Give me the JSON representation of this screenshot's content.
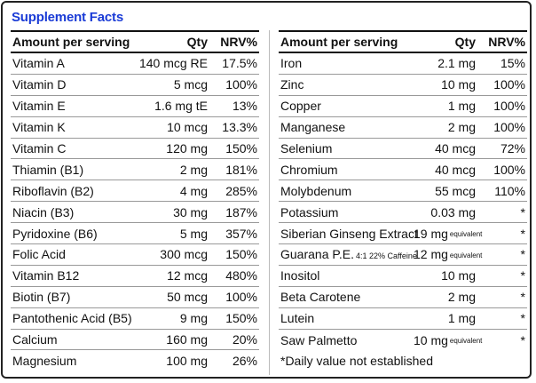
{
  "title": "Supplement Facts",
  "headers": {
    "name": "Amount per serving",
    "qty": "Qty",
    "nrv": "NRV%"
  },
  "left_rows": [
    {
      "name": "Vitamin A",
      "qty": "140 mcg RE",
      "nrv": "17.5%"
    },
    {
      "name": "Vitamin D",
      "qty": "5 mcg",
      "nrv": "100%"
    },
    {
      "name": "Vitamin E",
      "qty": "1.6 mg tE",
      "nrv": "13%"
    },
    {
      "name": "Vitamin K",
      "qty": "10 mcg",
      "nrv": "13.3%"
    },
    {
      "name": "Vitamin C",
      "qty": "120 mg",
      "nrv": "150%"
    },
    {
      "name": "Thiamin (B1)",
      "qty": "2 mg",
      "nrv": "181%"
    },
    {
      "name": "Riboflavin (B2)",
      "qty": "4 mg",
      "nrv": "285%"
    },
    {
      "name": "Niacin (B3)",
      "qty": "30 mg",
      "nrv": "187%"
    },
    {
      "name": "Pyridoxine (B6)",
      "qty": "5 mg",
      "nrv": "357%"
    },
    {
      "name": "Folic Acid",
      "qty": "300 mcg",
      "nrv": "150%"
    },
    {
      "name": "Vitamin B12",
      "qty": "12 mcg",
      "nrv": "480%"
    },
    {
      "name": "Biotin (B7)",
      "qty": "50 mcg",
      "nrv": "100%"
    },
    {
      "name": "Pantothenic Acid (B5)",
      "qty": "9 mg",
      "nrv": "150%"
    },
    {
      "name": "Calcium",
      "qty": "160 mg",
      "nrv": "20%"
    },
    {
      "name": "Magnesium",
      "qty": "100 mg",
      "nrv": "26%"
    }
  ],
  "right_rows": [
    {
      "name": "Iron",
      "qty": "2.1 mg",
      "nrv": "15%"
    },
    {
      "name": "Zinc",
      "qty": "10 mg",
      "nrv": "100%"
    },
    {
      "name": "Copper",
      "qty": "1 mg",
      "nrv": "100%"
    },
    {
      "name": "Manganese",
      "qty": "2 mg",
      "nrv": "100%"
    },
    {
      "name": "Selenium",
      "qty": "40 mcg",
      "nrv": "72%"
    },
    {
      "name": "Chromium",
      "qty": "40 mcg",
      "nrv": "100%"
    },
    {
      "name": "Molybdenum",
      "qty": "55 mcg",
      "nrv": "110%"
    },
    {
      "name": "Potassium",
      "qty": "0.03 mg",
      "nrv": "*"
    },
    {
      "name": "Siberian Ginseng Extract",
      "qty": "19 mg",
      "qty_note": "equivalent",
      "nrv": "*"
    },
    {
      "name": "Guarana P.E.",
      "name_note": "4:1 22% Caffeine",
      "qty": "12 mg",
      "qty_note": "equivalent",
      "nrv": "*"
    },
    {
      "name": "Inositol",
      "qty": "10 mg",
      "nrv": "*"
    },
    {
      "name": "Beta Carotene",
      "qty": "2 mg",
      "nrv": "*"
    },
    {
      "name": "Lutein",
      "qty": "1 mg",
      "nrv": "*"
    },
    {
      "name": "Saw Palmetto",
      "qty": "10 mg",
      "qty_note": "equivalent",
      "nrv": "*"
    }
  ],
  "footnote": "*Daily value not established",
  "colors": {
    "title": "#1a3bd6",
    "text": "#111111",
    "border": "#222222"
  }
}
